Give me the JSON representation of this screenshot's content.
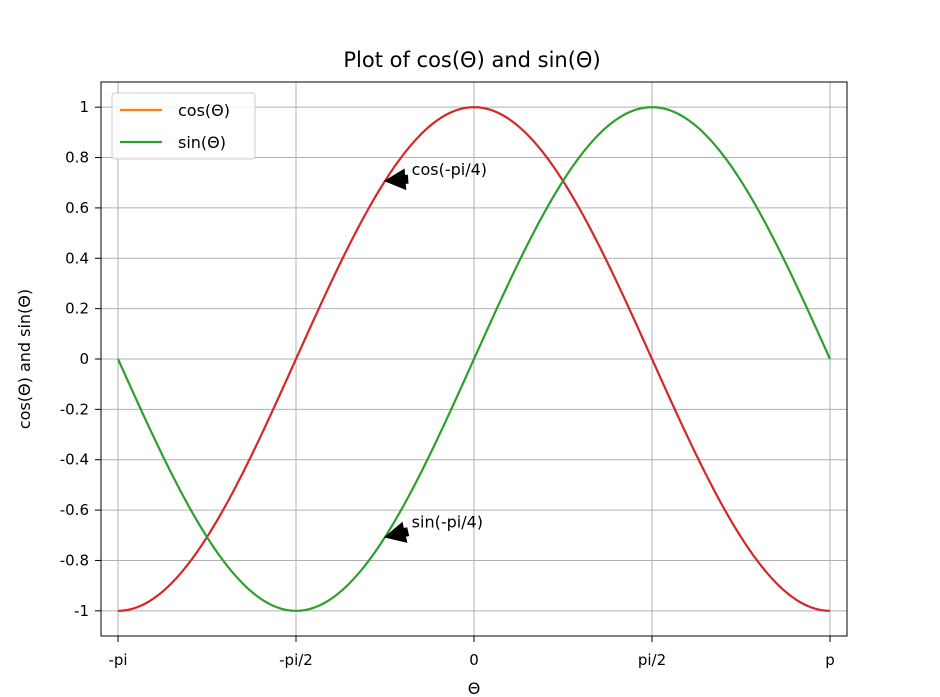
{
  "chart_data": {
    "type": "line",
    "title": "Plot of cos(Θ) and sin(Θ)",
    "xlabel": "Θ",
    "ylabel": "cos(Θ) and sin(Θ)",
    "xlim": [
      -3.2916,
      3.2916
    ],
    "ylim": [
      -1.1,
      1.1
    ],
    "grid": true,
    "legend_position": "upper-left",
    "x_ticks": [
      {
        "value": -3.14159,
        "label": "-pi"
      },
      {
        "value": -1.5708,
        "label": "-pi/2"
      },
      {
        "value": 0,
        "label": "0"
      },
      {
        "value": 1.5708,
        "label": "pi/2"
      },
      {
        "value": 3.14159,
        "label": "p"
      }
    ],
    "y_ticks": [
      {
        "value": 1,
        "label": "1"
      },
      {
        "value": 0.8,
        "label": "0.8"
      },
      {
        "value": 0.6,
        "label": "0.6"
      },
      {
        "value": 0.4,
        "label": "0.4"
      },
      {
        "value": 0.2,
        "label": "0.2"
      },
      {
        "value": 0,
        "label": "0"
      },
      {
        "value": -0.2,
        "label": "-0.2"
      },
      {
        "value": -0.4,
        "label": "-0.4"
      },
      {
        "value": -0.6,
        "label": "-0.6"
      },
      {
        "value": -0.8,
        "label": "-0.8"
      },
      {
        "value": -1,
        "label": "-1"
      }
    ],
    "series": [
      {
        "name": "cos(Θ)",
        "function": "cos",
        "x_range": [
          -3.14159,
          3.14159
        ],
        "line_color": "#d62728",
        "legend_color": "#ff7f0e"
      },
      {
        "name": "sin(Θ)",
        "function": "sin",
        "x_range": [
          -3.14159,
          3.14159
        ],
        "line_color": "#2ca02c",
        "legend_color": "#2ca02c"
      }
    ],
    "annotations": [
      {
        "text": "cos(-pi/4)",
        "point": [
          -0.7854,
          0.7071
        ],
        "text_at": [
          -0.55,
          0.73
        ]
      },
      {
        "text": "sin(-pi/4)",
        "point": [
          -0.7854,
          -0.7071
        ],
        "text_at": [
          -0.55,
          -0.67
        ]
      }
    ]
  }
}
